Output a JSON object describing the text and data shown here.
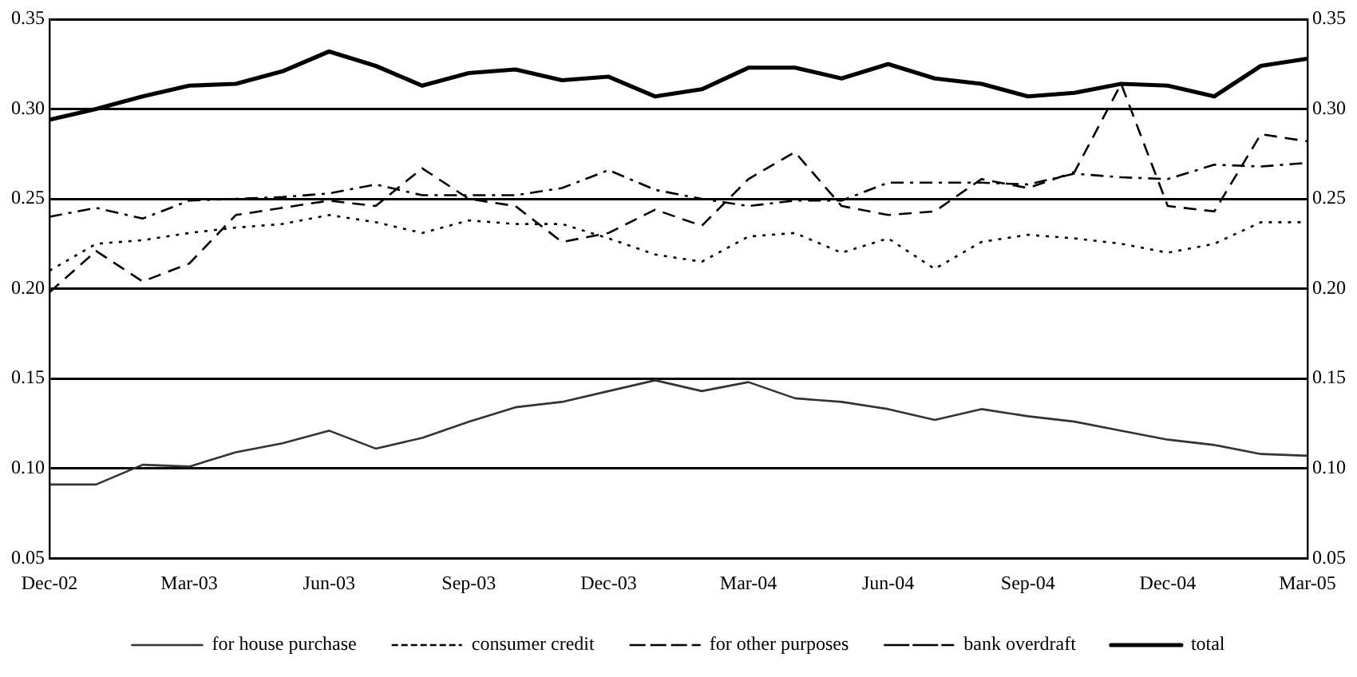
{
  "chart_data": {
    "type": "line",
    "categories": [
      "Dec-02",
      null,
      null,
      "Mar-03",
      null,
      null,
      "Jun-03",
      null,
      null,
      "Sep-03",
      null,
      null,
      "Dec-03",
      null,
      null,
      "Mar-04",
      null,
      null,
      "Jun-04",
      null,
      null,
      "Sep-04",
      null,
      null,
      "Dec-04",
      null,
      null,
      "Mar-05"
    ],
    "series": [
      {
        "name": "for house purchase",
        "color": "#333333",
        "line_style": "solid",
        "values": [
          0.091,
          0.091,
          0.102,
          0.101,
          0.109,
          0.114,
          0.121,
          0.111,
          0.117,
          0.126,
          0.134,
          0.137,
          0.143,
          0.149,
          0.143,
          0.148,
          0.139,
          0.137,
          0.133,
          0.127,
          0.133,
          0.129,
          0.126,
          0.121,
          0.116,
          0.113,
          0.108,
          0.107
        ]
      },
      {
        "name": "consumer credit",
        "color": "#000000",
        "line_style": "dotted",
        "values": [
          0.21,
          0.225,
          0.227,
          0.231,
          0.234,
          0.236,
          0.241,
          0.237,
          0.231,
          0.238,
          0.236,
          0.236,
          0.228,
          0.219,
          0.215,
          0.229,
          0.231,
          0.22,
          0.228,
          0.211,
          0.226,
          0.23,
          0.228,
          0.225,
          0.22,
          0.225,
          0.237,
          0.237
        ]
      },
      {
        "name": "for other purposes",
        "color": "#000000",
        "line_style": "dashed",
        "values": [
          0.198,
          0.221,
          0.204,
          0.214,
          0.241,
          0.245,
          0.249,
          0.246,
          0.267,
          0.25,
          0.246,
          0.226,
          0.231,
          0.244,
          0.235,
          0.261,
          0.276,
          0.246,
          0.241,
          0.243,
          0.261,
          0.256,
          0.265,
          0.314,
          0.246,
          0.243,
          0.286,
          0.282
        ]
      },
      {
        "name": "bank overdraft",
        "color": "#000000",
        "line_style": "dashdot",
        "values": [
          0.24,
          0.245,
          0.239,
          0.249,
          0.25,
          0.251,
          0.253,
          0.258,
          0.252,
          0.252,
          0.252,
          0.256,
          0.266,
          0.255,
          0.25,
          0.246,
          0.249,
          0.249,
          0.259,
          0.259,
          0.259,
          0.258,
          0.264,
          0.262,
          0.261,
          0.269,
          0.268,
          0.27
        ]
      },
      {
        "name": "total",
        "color": "#000000",
        "line_style": "solid",
        "values": [
          0.294,
          0.3,
          0.307,
          0.313,
          0.314,
          0.321,
          0.332,
          0.324,
          0.313,
          0.32,
          0.322,
          0.316,
          0.318,
          0.307,
          0.311,
          0.323,
          0.323,
          0.317,
          0.325,
          0.317,
          0.314,
          0.307,
          0.309,
          0.314,
          0.313,
          0.307,
          0.324,
          0.328
        ]
      }
    ],
    "ylim": [
      0.05,
      0.35
    ],
    "yticks": [
      {
        "value": 0.05,
        "label": "0.05"
      },
      {
        "value": 0.1,
        "label": "0.10"
      },
      {
        "value": 0.15,
        "label": "0.15"
      },
      {
        "value": 0.2,
        "label": "0.20"
      },
      {
        "value": 0.25,
        "label": "0.25"
      },
      {
        "value": 0.3,
        "label": "0.30"
      },
      {
        "value": 0.35,
        "label": "0.35"
      }
    ],
    "y2lim": [
      0.05,
      0.35
    ],
    "y2ticks": [
      {
        "value": 0.05,
        "label": "0.05"
      },
      {
        "value": 0.1,
        "label": "0.10"
      },
      {
        "value": 0.15,
        "label": "0.15"
      },
      {
        "value": 0.2,
        "label": "0.20"
      },
      {
        "value": 0.25,
        "label": "0.25"
      },
      {
        "value": 0.3,
        "label": "0.30"
      },
      {
        "value": 0.35,
        "label": "0.35"
      }
    ],
    "grid": "y",
    "legend": "bottom",
    "marker": "none"
  }
}
